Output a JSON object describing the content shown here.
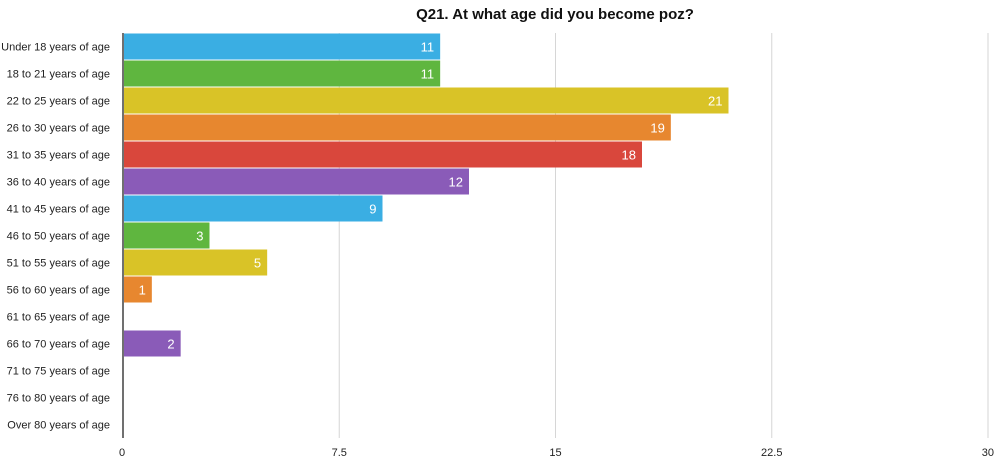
{
  "chart_data": {
    "type": "bar",
    "orientation": "horizontal",
    "title": "Q21. At what age did you become poz?",
    "xlabel": "",
    "ylabel": "",
    "xlim": [
      0,
      30
    ],
    "xticks": [
      "0",
      "7.5",
      "15",
      "22.5",
      "30"
    ],
    "tick_values": [
      0,
      7.5,
      15,
      22.5,
      30
    ],
    "grid": "vertical",
    "legend": "none",
    "categories": [
      "Under 18 years of age",
      "18 to 21 years of age",
      "22 to 25 years of age",
      "26 to 30 years of age",
      "31 to 35 years of age",
      "36 to 40 years of age",
      "41 to 45 years of age",
      "46 to 50 years of age",
      "51 to 55 years of age",
      "56 to 60 years of age",
      "61 to 65 years of age",
      "66 to 70 years of age",
      "71 to 75 years of age",
      "76 to 80 years of age",
      "Over 80 years of age"
    ],
    "values": [
      11,
      11,
      21,
      19,
      18,
      12,
      9,
      3,
      5,
      1,
      null,
      2,
      null,
      null,
      null
    ],
    "value_labels": [
      "11",
      "11",
      "21",
      "19",
      "18",
      "12",
      "9",
      "3",
      "5",
      "1",
      "",
      "2",
      "",
      "",
      ""
    ],
    "colors": [
      "#3aaee3",
      "#5fb63f",
      "#d9c327",
      "#e7872f",
      "#d9473c",
      "#8a5bb8"
    ]
  }
}
